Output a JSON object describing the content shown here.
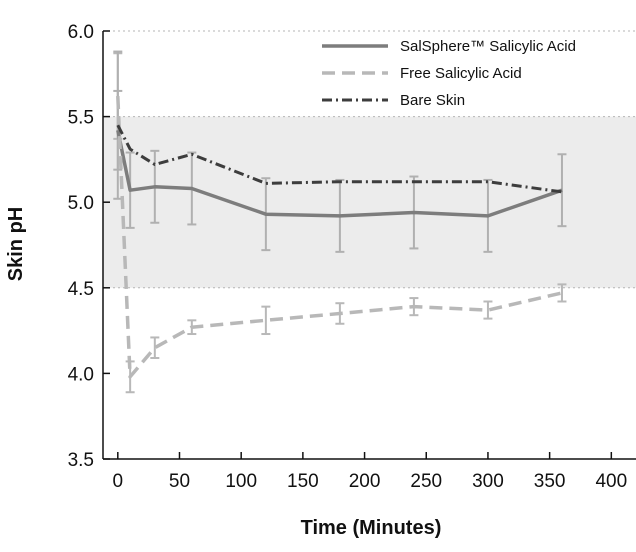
{
  "chart_data": {
    "type": "line",
    "title": "",
    "xlabel": "Time (Minutes)",
    "ylabel": "Skin pH",
    "xlim": [
      -12,
      420
    ],
    "ylim": [
      3.5,
      6.0
    ],
    "xticks": [
      0,
      50,
      100,
      150,
      200,
      250,
      300,
      350,
      400
    ],
    "yticks": [
      3.5,
      4.0,
      4.5,
      5.0,
      5.5,
      6.0
    ],
    "xtick_labels": [
      "0",
      "50",
      "100",
      "150",
      "200",
      "250",
      "300",
      "350",
      "400"
    ],
    "ytick_labels": [
      "3.5",
      "4.0",
      "4.5",
      "5.0",
      "5.5",
      "6.0"
    ],
    "shaded_band": [
      4.5,
      5.5
    ],
    "grid": "dotted horizontal at 4.5 and 5.5 and 6.0",
    "legend_position": "top-right",
    "series": [
      {
        "name": "SalSphere™ Salicylic Acid",
        "style": "solid",
        "color": "#7d7d7d",
        "errcolor": "#b0b0b0",
        "x": [
          0,
          10,
          30,
          60,
          120,
          180,
          240,
          300,
          360
        ],
        "y": [
          5.42,
          5.07,
          5.09,
          5.08,
          4.93,
          4.92,
          4.94,
          4.92,
          5.07
        ],
        "err": [
          0.23,
          0.22,
          0.21,
          0.21,
          0.21,
          0.21,
          0.21,
          0.21,
          0.21
        ]
      },
      {
        "name": "Free Salicylic Acid",
        "style": "dashed",
        "color": "#b8b8b8",
        "errcolor": "#b8b8b8",
        "x": [
          0,
          10,
          30,
          60,
          120,
          180,
          240,
          300,
          360
        ],
        "y": [
          5.62,
          3.98,
          4.15,
          4.27,
          4.31,
          4.35,
          4.39,
          4.37,
          4.47
        ],
        "err": [
          0.25,
          0.09,
          0.06,
          0.04,
          0.08,
          0.06,
          0.05,
          0.05,
          0.05
        ]
      },
      {
        "name": "Bare Skin",
        "style": "dashdot",
        "color": "#3d3d3d",
        "errcolor": "#b0b0b0",
        "x": [
          0,
          10,
          30,
          60,
          120,
          180,
          240,
          300,
          360
        ],
        "y": [
          5.45,
          5.31,
          5.22,
          5.28,
          5.11,
          5.12,
          5.12,
          5.12,
          5.06
        ],
        "err": [
          0.43,
          0.0,
          0.0,
          0.0,
          0.0,
          0.0,
          0.0,
          0.0,
          0.0
        ]
      }
    ]
  }
}
